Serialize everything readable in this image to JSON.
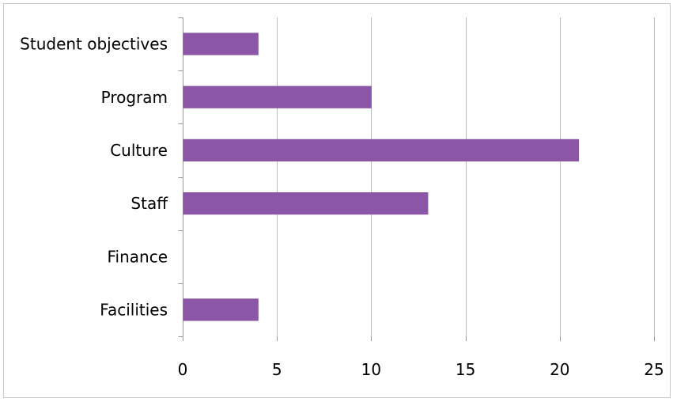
{
  "colors": {
    "bar": "#8a56a5",
    "grid": "#bcbcbc",
    "axis": "#9a9a9a",
    "frame": "#c8c8c8"
  },
  "chart_data": {
    "type": "bar",
    "orientation": "horizontal",
    "categories": [
      "Student objectives",
      "Program",
      "Culture",
      "Staff",
      "Finance",
      "Facilities"
    ],
    "values": [
      4,
      10,
      21,
      13,
      0,
      4
    ],
    "xlim": [
      0,
      25
    ],
    "x_ticks": [
      "0",
      "5",
      "10",
      "15",
      "20",
      "25"
    ],
    "title": "",
    "xlabel": "",
    "ylabel": "",
    "grid": true,
    "legend": "none"
  }
}
